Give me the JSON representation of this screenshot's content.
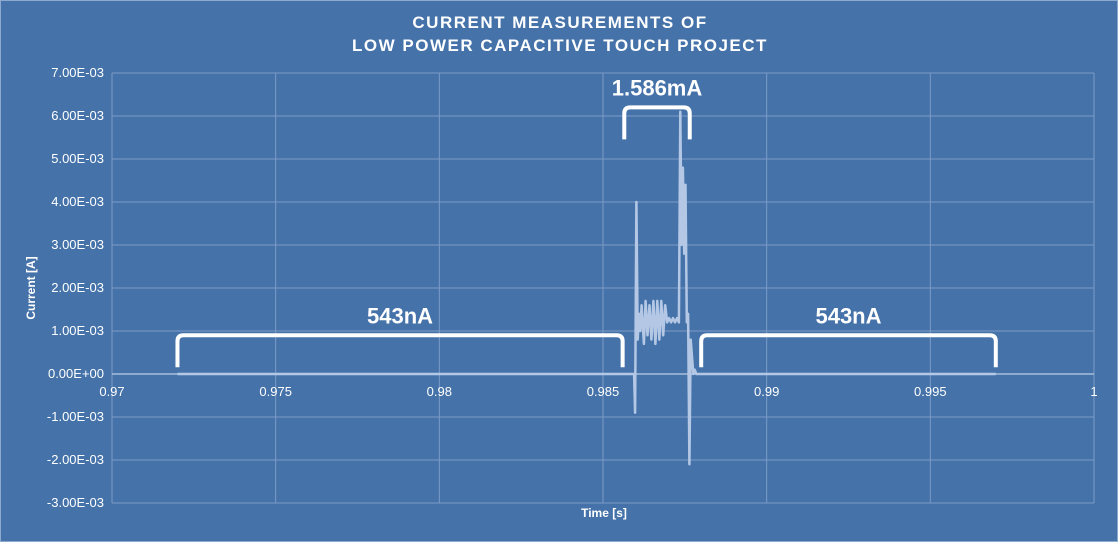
{
  "chart_data": {
    "type": "line",
    "title_lines": [
      "CURRENT MEASUREMENTS OF",
      "LOW POWER CAPACITIVE TOUCH PROJECT"
    ],
    "xlabel": "Time [s]",
    "ylabel": "Current [A]",
    "xlim": [
      0.97,
      1.0
    ],
    "ylim": [
      -0.003,
      0.007
    ],
    "x_ticks": [
      0.97,
      0.975,
      0.98,
      0.985,
      0.99,
      0.995,
      1.0
    ],
    "x_tick_labels": [
      "0.97",
      "0.975",
      "0.98",
      "0.985",
      "0.99",
      "0.995",
      "1"
    ],
    "y_ticks": [
      0.007,
      0.006,
      0.005,
      0.004,
      0.003,
      0.002,
      0.001,
      0,
      -0.001,
      -0.002,
      -0.003
    ],
    "y_tick_labels": [
      "7.00E-03",
      "6.00E-03",
      "5.00E-03",
      "4.00E-03",
      "3.00E-03",
      "2.00E-03",
      "1.00E-03",
      "0.00E+00",
      "-1.00E-03",
      "-2.00E-03",
      "-3.00E-03"
    ],
    "grid": true,
    "series_color": "#B4C8E6",
    "series": [
      {
        "x": [
          0.972,
          0.98595,
          0.98598,
          0.98602,
          0.98606,
          0.9861,
          0.98614,
          0.98618,
          0.98625,
          0.9863,
          0.98636,
          0.98642,
          0.98648,
          0.98654,
          0.9866,
          0.98666,
          0.98672,
          0.98678,
          0.98684,
          0.9869,
          0.98696,
          0.98702,
          0.98708,
          0.98714,
          0.9872,
          0.98726,
          0.98732,
          0.98736,
          0.9874,
          0.98744,
          0.98748,
          0.98752,
          0.98756,
          0.9876,
          0.98764,
          0.98768,
          0.98772,
          0.98776,
          0.9878,
          0.98785,
          0.9879,
          0.997
        ],
        "y": [
          0,
          0,
          -0.0009,
          0.004,
          0.0008,
          0.0014,
          0.001,
          0.0016,
          0.0007,
          0.0017,
          0.0009,
          0.0016,
          0.0008,
          0.0017,
          0.0007,
          0.0017,
          0.0008,
          0.0017,
          0.0009,
          0.0016,
          0.0012,
          0.0013,
          0.0012,
          0.0013,
          0.0012,
          0.0013,
          0.0012,
          0.0061,
          0.003,
          0.0048,
          0.0028,
          0.0044,
          0.0012,
          0.0014,
          -0.0021,
          0.0008,
          0.0004,
          0,
          0.0001,
          0,
          0,
          0
        ]
      }
    ],
    "annotations": [
      {
        "text": "543nA",
        "x_start": 0.972,
        "x_end": 0.9856,
        "y": 0.0009
      },
      {
        "text": "1.586mA",
        "x_start": 0.98565,
        "x_end": 0.98765,
        "y": 0.0062
      },
      {
        "text": "543nA",
        "x_start": 0.988,
        "x_end": 0.997,
        "y": 0.0009
      }
    ]
  }
}
